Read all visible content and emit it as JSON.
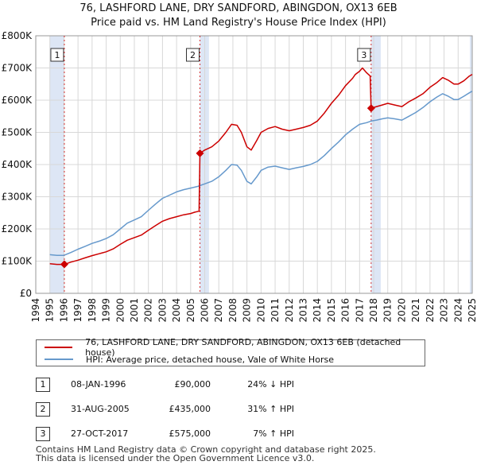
{
  "header": {
    "title_line1": "76, LASHFORD LANE, DRY SANDFORD, ABINGDON, OX13 6EB",
    "title_line2": "Price paid vs. HM Land Registry's House Price Index (HPI)"
  },
  "colors": {
    "property": "#cc0000",
    "hpi": "#6699cc",
    "shade": "#dde6f5"
  },
  "chart_data": {
    "type": "line",
    "x_range": [
      1994,
      2025
    ],
    "ylim": [
      0,
      800000
    ],
    "y_ticks": [
      {
        "value": 0,
        "label": "£0"
      },
      {
        "value": 100000,
        "label": "£100K"
      },
      {
        "value": 200000,
        "label": "£200K"
      },
      {
        "value": 300000,
        "label": "£300K"
      },
      {
        "value": 400000,
        "label": "£400K"
      },
      {
        "value": 500000,
        "label": "£500K"
      },
      {
        "value": 600000,
        "label": "£600K"
      },
      {
        "value": 700000,
        "label": "£700K"
      },
      {
        "value": 800000,
        "label": "£800K"
      }
    ],
    "x_ticks": [
      "1994",
      "1995",
      "1996",
      "1997",
      "1998",
      "1999",
      "2000",
      "2001",
      "2002",
      "2003",
      "2004",
      "2005",
      "2006",
      "2007",
      "2008",
      "2009",
      "2010",
      "2011",
      "2012",
      "2013",
      "2014",
      "2015",
      "2016",
      "2017",
      "2018",
      "2019",
      "2020",
      "2021",
      "2022",
      "2023",
      "2024",
      "2025"
    ],
    "shaded_periods": [
      [
        1995.0,
        1996.03
      ],
      [
        2005.66,
        2006.3
      ],
      [
        2017.82,
        2018.5
      ],
      [
        2024.83,
        2025.0
      ]
    ],
    "series": [
      {
        "name": "76, LASHFORD LANE, DRY SANDFORD, ABINGDON, OX13 6EB (detached house)",
        "color": "#cc0000",
        "points": [
          [
            1995.0,
            92000
          ],
          [
            1995.5,
            90000
          ],
          [
            1996.03,
            90000
          ],
          [
            1996.5,
            97000
          ],
          [
            1997.0,
            103000
          ],
          [
            1997.5,
            110000
          ],
          [
            1998.0,
            117000
          ],
          [
            1998.5,
            123000
          ],
          [
            1999.0,
            129000
          ],
          [
            1999.5,
            138000
          ],
          [
            2000.0,
            152000
          ],
          [
            2000.5,
            165000
          ],
          [
            2001.0,
            173000
          ],
          [
            2001.5,
            181000
          ],
          [
            2002.0,
            196000
          ],
          [
            2002.5,
            210000
          ],
          [
            2003.0,
            224000
          ],
          [
            2003.5,
            232000
          ],
          [
            2004.0,
            238000
          ],
          [
            2004.5,
            244000
          ],
          [
            2005.0,
            248000
          ],
          [
            2005.3,
            252000
          ],
          [
            2005.6,
            255000
          ],
          [
            2005.66,
            435000
          ],
          [
            2006.0,
            445000
          ],
          [
            2006.5,
            455000
          ],
          [
            2007.0,
            473000
          ],
          [
            2007.5,
            500000
          ],
          [
            2007.9,
            525000
          ],
          [
            2008.3,
            522000
          ],
          [
            2008.6,
            500000
          ],
          [
            2009.0,
            455000
          ],
          [
            2009.3,
            445000
          ],
          [
            2009.7,
            475000
          ],
          [
            2010.0,
            500000
          ],
          [
            2010.5,
            512000
          ],
          [
            2011.0,
            518000
          ],
          [
            2011.5,
            510000
          ],
          [
            2012.0,
            505000
          ],
          [
            2012.5,
            510000
          ],
          [
            2013.0,
            515000
          ],
          [
            2013.5,
            522000
          ],
          [
            2014.0,
            535000
          ],
          [
            2014.5,
            560000
          ],
          [
            2015.0,
            590000
          ],
          [
            2015.5,
            615000
          ],
          [
            2016.0,
            645000
          ],
          [
            2016.5,
            668000
          ],
          [
            2016.7,
            680000
          ],
          [
            2017.0,
            690000
          ],
          [
            2017.2,
            700000
          ],
          [
            2017.5,
            685000
          ],
          [
            2017.75,
            675000
          ],
          [
            2017.82,
            575000
          ],
          [
            2018.2,
            580000
          ],
          [
            2018.6,
            585000
          ],
          [
            2019.0,
            590000
          ],
          [
            2019.5,
            585000
          ],
          [
            2020.0,
            580000
          ],
          [
            2020.5,
            595000
          ],
          [
            2021.0,
            607000
          ],
          [
            2021.5,
            620000
          ],
          [
            2022.0,
            640000
          ],
          [
            2022.5,
            655000
          ],
          [
            2022.9,
            670000
          ],
          [
            2023.3,
            662000
          ],
          [
            2023.7,
            650000
          ],
          [
            2024.0,
            650000
          ],
          [
            2024.4,
            660000
          ],
          [
            2024.8,
            675000
          ],
          [
            2025.0,
            680000
          ]
        ]
      },
      {
        "name": "HPI: Average price, detached house, Vale of White Horse",
        "color": "#6699cc",
        "points": [
          [
            1995.0,
            120000
          ],
          [
            1995.5,
            118000
          ],
          [
            1996.0,
            118000
          ],
          [
            1996.5,
            127000
          ],
          [
            1997.0,
            137000
          ],
          [
            1997.5,
            146000
          ],
          [
            1998.0,
            155000
          ],
          [
            1998.5,
            162000
          ],
          [
            1999.0,
            170000
          ],
          [
            1999.5,
            182000
          ],
          [
            2000.0,
            200000
          ],
          [
            2000.5,
            218000
          ],
          [
            2001.0,
            228000
          ],
          [
            2001.5,
            238000
          ],
          [
            2002.0,
            258000
          ],
          [
            2002.5,
            277000
          ],
          [
            2003.0,
            295000
          ],
          [
            2003.5,
            305000
          ],
          [
            2004.0,
            315000
          ],
          [
            2004.5,
            322000
          ],
          [
            2005.0,
            327000
          ],
          [
            2005.5,
            332000
          ],
          [
            2006.0,
            340000
          ],
          [
            2006.5,
            348000
          ],
          [
            2007.0,
            362000
          ],
          [
            2007.5,
            382000
          ],
          [
            2007.9,
            400000
          ],
          [
            2008.3,
            398000
          ],
          [
            2008.6,
            382000
          ],
          [
            2009.0,
            348000
          ],
          [
            2009.3,
            340000
          ],
          [
            2009.7,
            362000
          ],
          [
            2010.0,
            382000
          ],
          [
            2010.5,
            392000
          ],
          [
            2011.0,
            395000
          ],
          [
            2011.5,
            390000
          ],
          [
            2012.0,
            385000
          ],
          [
            2012.5,
            390000
          ],
          [
            2013.0,
            394000
          ],
          [
            2013.5,
            400000
          ],
          [
            2014.0,
            410000
          ],
          [
            2014.5,
            428000
          ],
          [
            2015.0,
            450000
          ],
          [
            2015.5,
            470000
          ],
          [
            2016.0,
            492000
          ],
          [
            2016.5,
            510000
          ],
          [
            2017.0,
            525000
          ],
          [
            2017.5,
            530000
          ],
          [
            2017.82,
            535000
          ],
          [
            2018.2,
            538000
          ],
          [
            2018.6,
            542000
          ],
          [
            2019.0,
            545000
          ],
          [
            2019.5,
            542000
          ],
          [
            2020.0,
            538000
          ],
          [
            2020.5,
            550000
          ],
          [
            2021.0,
            562000
          ],
          [
            2021.5,
            577000
          ],
          [
            2022.0,
            595000
          ],
          [
            2022.5,
            610000
          ],
          [
            2022.9,
            620000
          ],
          [
            2023.3,
            612000
          ],
          [
            2023.7,
            602000
          ],
          [
            2024.0,
            602000
          ],
          [
            2024.4,
            612000
          ],
          [
            2024.8,
            623000
          ],
          [
            2025.0,
            628000
          ]
        ]
      }
    ],
    "sales": [
      {
        "marker": "1",
        "x": 1996.03,
        "y": 90000
      },
      {
        "marker": "2",
        "x": 2005.66,
        "y": 435000
      },
      {
        "marker": "3",
        "x": 2017.82,
        "y": 575000
      }
    ]
  },
  "legend": {
    "property_label": "76, LASHFORD LANE, DRY SANDFORD, ABINGDON, OX13 6EB (detached house)",
    "hpi_label": "HPI: Average price, detached house, Vale of White Horse"
  },
  "sales_table": [
    {
      "marker": "1",
      "date": "08-JAN-1996",
      "price": "£90,000",
      "hpi": "24% ↓ HPI"
    },
    {
      "marker": "2",
      "date": "31-AUG-2005",
      "price": "£435,000",
      "hpi": "31% ↑ HPI"
    },
    {
      "marker": "3",
      "date": "27-OCT-2017",
      "price": "£575,000",
      "hpi": "7% ↑ HPI"
    }
  ],
  "footer": {
    "line1": "Contains HM Land Registry data © Crown copyright and database right 2025.",
    "line2": "This data is licensed under the Open Government Licence v3.0."
  }
}
